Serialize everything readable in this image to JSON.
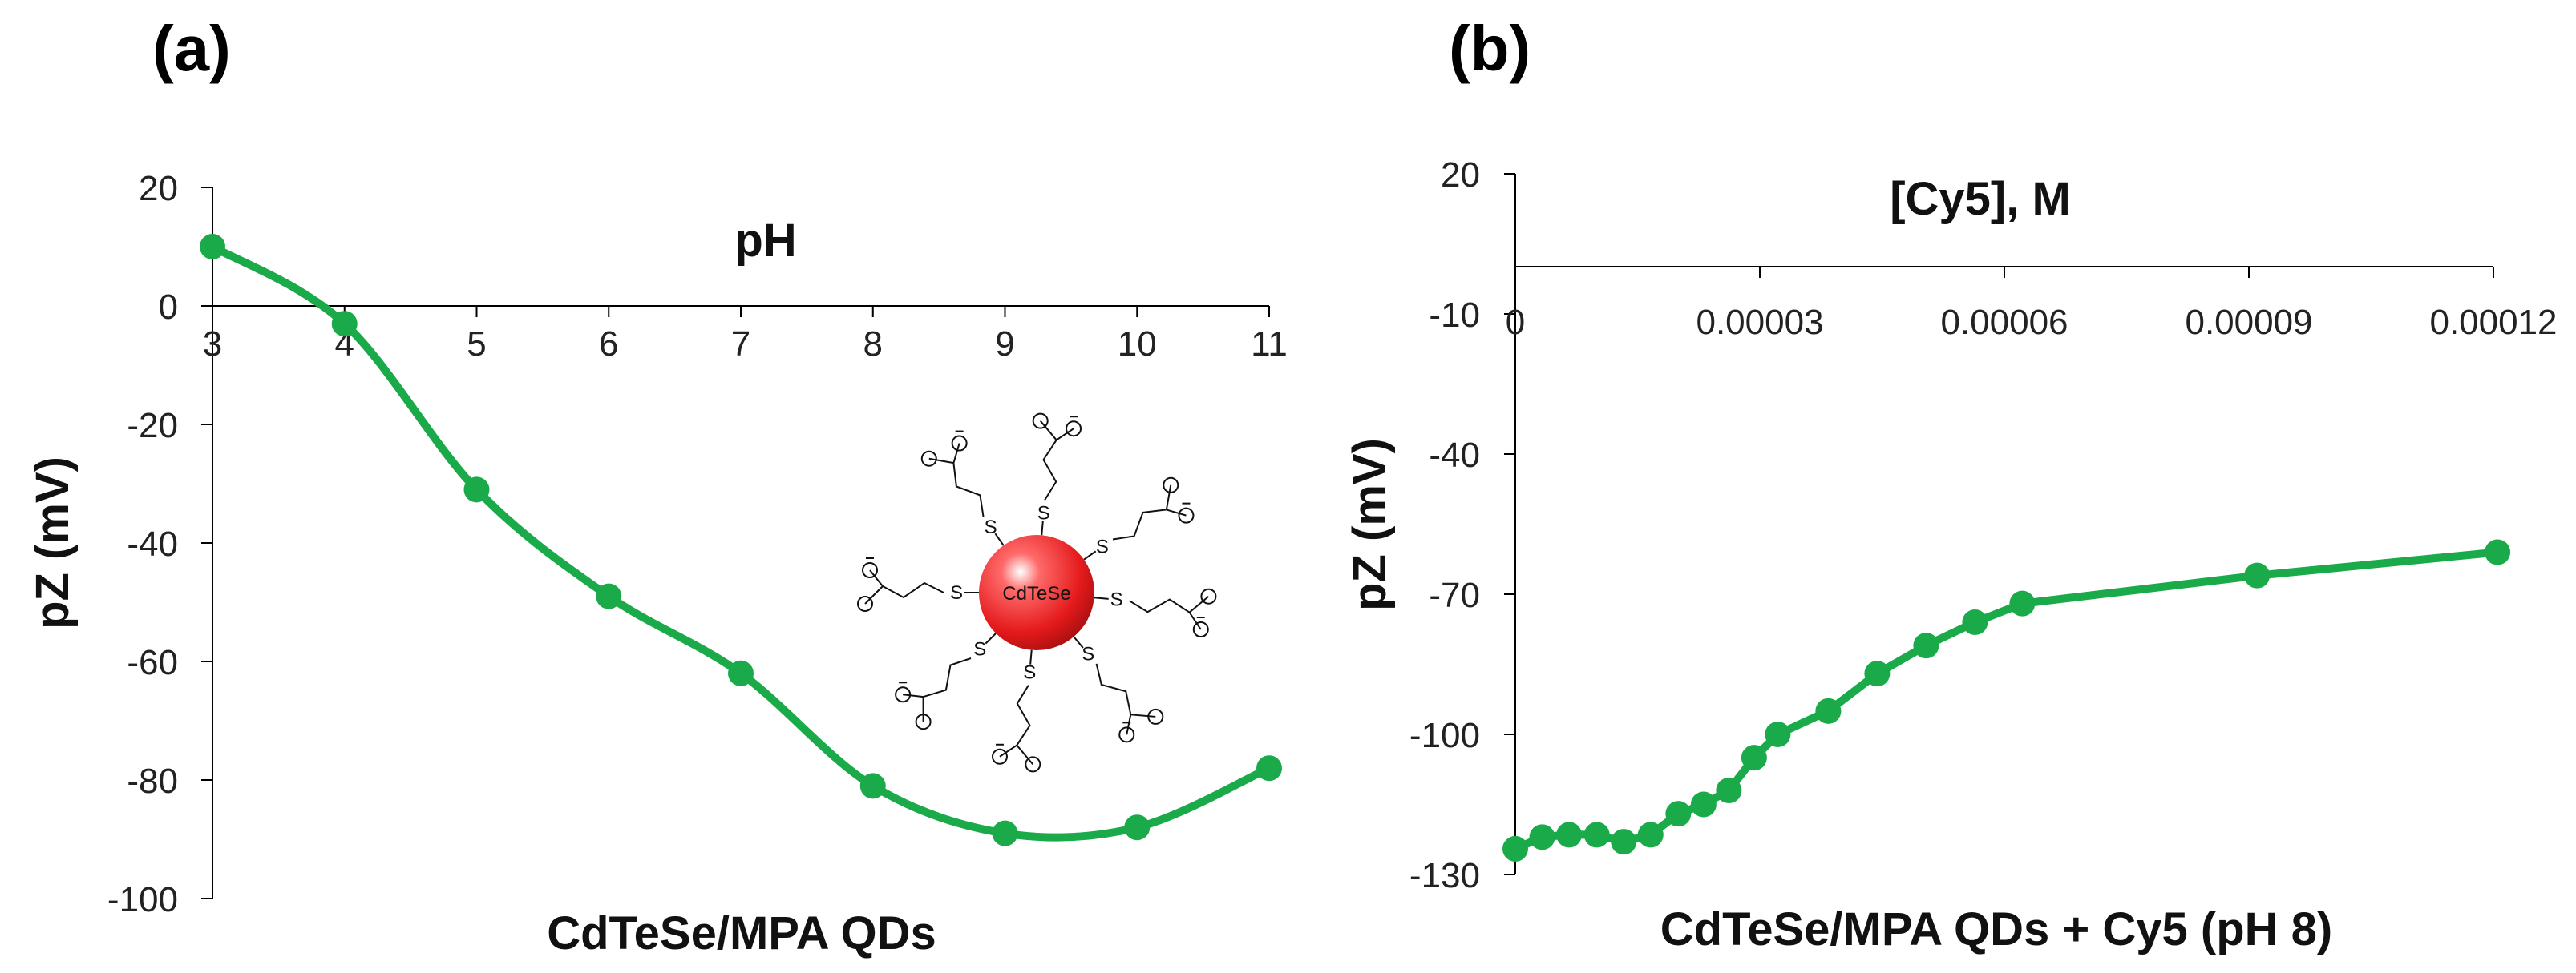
{
  "chart_data": [
    {
      "type": "line",
      "panel_label": "(a)",
      "title": "CdTeSe/MPA QDs",
      "xlabel": "pH",
      "ylabel": "pZ (mV)",
      "xlim": [
        3,
        11
      ],
      "ylim": [
        -100,
        20
      ],
      "xticks": [
        3,
        4,
        5,
        6,
        7,
        8,
        9,
        10,
        11
      ],
      "xtick_labels": [
        "3",
        "4",
        "5",
        "6",
        "7",
        "8",
        "9",
        "10",
        "11"
      ],
      "yticks": [
        20,
        0,
        -20,
        -40,
        -60,
        -80,
        -100
      ],
      "ytick_labels": [
        "20",
        "0",
        "-20",
        "-40",
        "-60",
        "-80",
        "-100"
      ],
      "smooth": true,
      "series": [
        {
          "name": "CdTeSe/MPA QDs",
          "color": "#1aaa4a",
          "x": [
            3,
            4,
            5,
            6,
            7,
            8,
            9,
            10,
            11
          ],
          "y": [
            10,
            -3,
            -31,
            -49,
            -62,
            -81,
            -89,
            -88,
            -78
          ]
        }
      ],
      "inset": {
        "core_label": "CdTeSe",
        "ligand_atom": "S",
        "core_color": "#e41a1c"
      }
    },
    {
      "type": "line",
      "panel_label": "(b)",
      "title": "CdTeSe/MPA QDs + Cy5 (pH 8)",
      "xlabel": "[Cy5], M",
      "ylabel": "pZ (mV)",
      "xlim": [
        0,
        0.00012
      ],
      "ylim": [
        -130,
        20
      ],
      "xticks": [
        0,
        3e-05,
        6e-05,
        9e-05,
        0.00012
      ],
      "xtick_labels": [
        "0",
        "0.00003",
        "0.00006",
        "0.00009",
        "0.00012"
      ],
      "yticks": [
        20,
        -10,
        -40,
        -70,
        -100,
        -130
      ],
      "ytick_labels": [
        "20",
        "-10",
        "-40",
        "-70",
        "-100",
        "-130"
      ],
      "x_axis_at": 0,
      "smooth": false,
      "series": [
        {
          "name": "CdTeSe/MPA QDs + Cy5",
          "color": "#1aaa4a",
          "x": [
            0,
            3.3e-06,
            6.6e-06,
            1e-05,
            1.33e-05,
            1.66e-05,
            2e-05,
            2.31e-05,
            2.62e-05,
            2.93e-05,
            3.22e-05,
            3.84e-05,
            4.44e-05,
            5.04e-05,
            5.64e-05,
            6.22e-05,
            9.1e-05,
            0.0001205
          ],
          "y": [
            -124.5,
            -122,
            -121.5,
            -121.5,
            -123,
            -121.5,
            -117,
            -115,
            -112,
            -105,
            -100,
            -95,
            -87,
            -81,
            -76,
            -72,
            -66,
            -61
          ]
        }
      ]
    }
  ]
}
